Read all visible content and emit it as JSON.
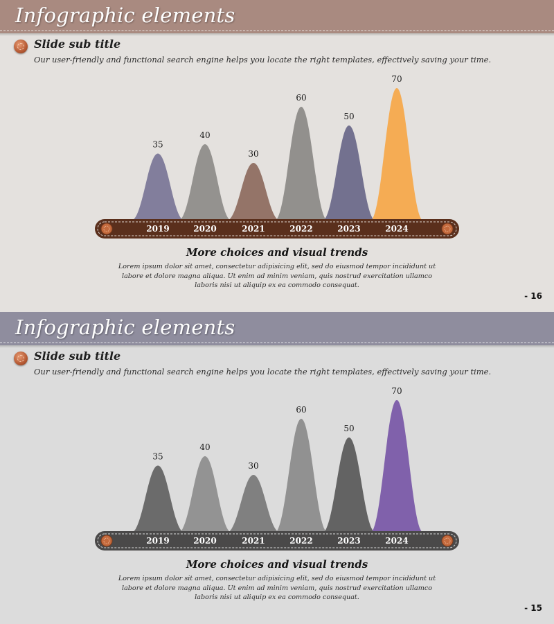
{
  "slides": [
    {
      "title": "Infographic elements",
      "subtitle": "Slide sub title",
      "description": "Our user-friendly and functional search engine helps you locate the right templates, effectively saving your time.",
      "chart_heading": "More choices and visual trends",
      "body_text": "Lorem ipsum dolor sit amet, consectetur adipisicing elit, sed do eiusmod tempor incididunt ut labore et dolore magna aliqua. Ut enim ad minim veniam, quis nostrud exercitation ullamco laboris nisi ut aliquip ex ea commodo consequat.",
      "page_number": "- 16",
      "colors": {
        "header": "#a98a80",
        "timeline_bar": "#5a2f1c",
        "peaks": [
          "#7c7898",
          "#8f8d8a",
          "#8f6e61",
          "#8d8b88",
          "#6d6a8a",
          "#f6a94c"
        ]
      }
    },
    {
      "title": "Infographic elements",
      "subtitle": "Slide sub title",
      "description": "Our user-friendly and functional search engine helps you locate the right templates, effectively saving your time.",
      "chart_heading": "More choices and visual trends",
      "body_text": "Lorem ipsum dolor sit amet, consectetur adipisicing elit, sed do eiusmod tempor incididunt ut labore et dolore magna aliqua. Ut enim ad minim veniam, quis nostrud exercitation ullamco laboris nisi ut aliquip ex ea commodo consequat.",
      "page_number": "- 15",
      "colors": {
        "header": "#8f8d9e",
        "timeline_bar": "#4a4949",
        "peaks": [
          "#646464",
          "#8e8e8e",
          "#7a7a7a",
          "#8c8c8c",
          "#5c5c5c",
          "#7a5aa8"
        ]
      }
    }
  ],
  "chart_data": [
    {
      "type": "area",
      "categories": [
        "2019",
        "2020",
        "2021",
        "2022",
        "2023",
        "2024"
      ],
      "values": [
        35,
        40,
        30,
        60,
        50,
        70
      ],
      "title": "More choices and visual trends",
      "ylim": [
        0,
        70
      ],
      "grid": false,
      "legend": "none"
    },
    {
      "type": "area",
      "categories": [
        "2019",
        "2020",
        "2021",
        "2022",
        "2023",
        "2024"
      ],
      "values": [
        35,
        40,
        30,
        60,
        50,
        70
      ],
      "title": "More choices and visual trends",
      "ylim": [
        0,
        70
      ],
      "grid": false,
      "legend": "none"
    }
  ]
}
